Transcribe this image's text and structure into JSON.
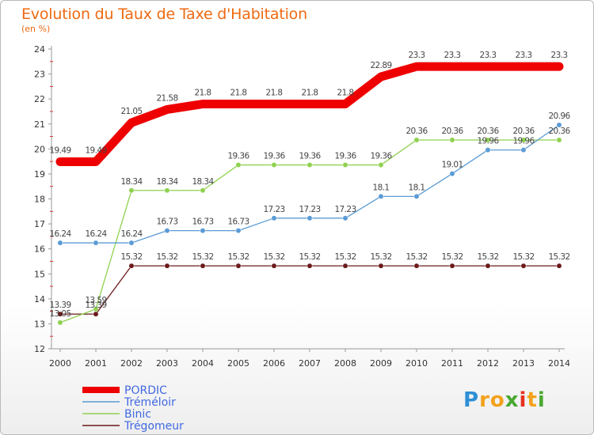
{
  "title": "Evolution du Taux de Taxe d'Habitation",
  "unit": "(en %)",
  "logo": {
    "letters": [
      "P",
      "r",
      "o",
      "x",
      "i",
      "t",
      "i"
    ],
    "colors": [
      "#2e8fd6",
      "#f2a21b",
      "#f2a21b",
      "#4aa832",
      "#e8301f",
      "#f2a21b",
      "#4aa832"
    ]
  },
  "chart_data": {
    "type": "line",
    "title": "Evolution du Taux de Taxe d'Habitation",
    "ylabel": "(en %)",
    "xlabel": "",
    "x": [
      "2000",
      "2001",
      "2002",
      "2003",
      "2004",
      "2005",
      "2006",
      "2007",
      "2008",
      "2009",
      "2010",
      "2011",
      "2012",
      "2013",
      "2014"
    ],
    "ylim": [
      12,
      24
    ],
    "yticks": [
      "12",
      "13",
      "14",
      "15",
      "16",
      "17",
      "18",
      "19",
      "20",
      "21",
      "22",
      "23",
      "24"
    ],
    "grid": false,
    "legend": "bottom-left",
    "series": [
      {
        "name": "PORDIC",
        "color": "#ee0000",
        "values": [
          19.49,
          19.49,
          21.05,
          21.58,
          21.8,
          21.8,
          21.8,
          21.8,
          21.8,
          22.89,
          23.3,
          23.3,
          23.3,
          23.3,
          23.3
        ],
        "labels": [
          "19.49",
          "19.49",
          "21.05",
          "21.58",
          "21.8",
          "21.8",
          "21.8",
          "21.8",
          "21.8",
          "22.89",
          "23.3",
          "23.3",
          "23.3",
          "23.3",
          "23.3"
        ]
      },
      {
        "name": "Tréméloir",
        "color": "#5b9bd5",
        "values": [
          16.24,
          16.24,
          16.24,
          16.73,
          16.73,
          16.73,
          17.23,
          17.23,
          17.23,
          18.1,
          18.1,
          19.01,
          19.96,
          19.96,
          20.96
        ],
        "labels": [
          "16.24",
          "16.24",
          "16.24",
          "16.73",
          "16.73",
          "16.73",
          "17.23",
          "17.23",
          "17.23",
          "18.1",
          "18.1",
          "19.01",
          "19.96",
          "19.96",
          "20.96"
        ]
      },
      {
        "name": "Binic",
        "color": "#8fd14f",
        "values": [
          13.05,
          13.59,
          18.34,
          18.34,
          18.34,
          19.36,
          19.36,
          19.36,
          19.36,
          19.36,
          20.36,
          20.36,
          20.36,
          20.36,
          20.36
        ],
        "labels": [
          "13.05",
          "13.59",
          "18.34",
          "18.34",
          "18.34",
          "19.36",
          "19.36",
          "19.36",
          "19.36",
          "19.36",
          "20.36",
          "20.36",
          "20.36",
          "20.36",
          "20.36"
        ]
      },
      {
        "name": "Trégomeur",
        "color": "#6b1a1a",
        "values": [
          13.39,
          13.39,
          15.32,
          15.32,
          15.32,
          15.32,
          15.32,
          15.32,
          15.32,
          15.32,
          15.32,
          15.32,
          15.32,
          15.32,
          15.32
        ],
        "labels": [
          "13.39",
          "13.39",
          "15.32",
          "15.32",
          "15.32",
          "15.32",
          "15.32",
          "15.32",
          "15.32",
          "15.32",
          "15.32",
          "15.32",
          "15.32",
          "15.32",
          "15.32"
        ]
      }
    ]
  }
}
